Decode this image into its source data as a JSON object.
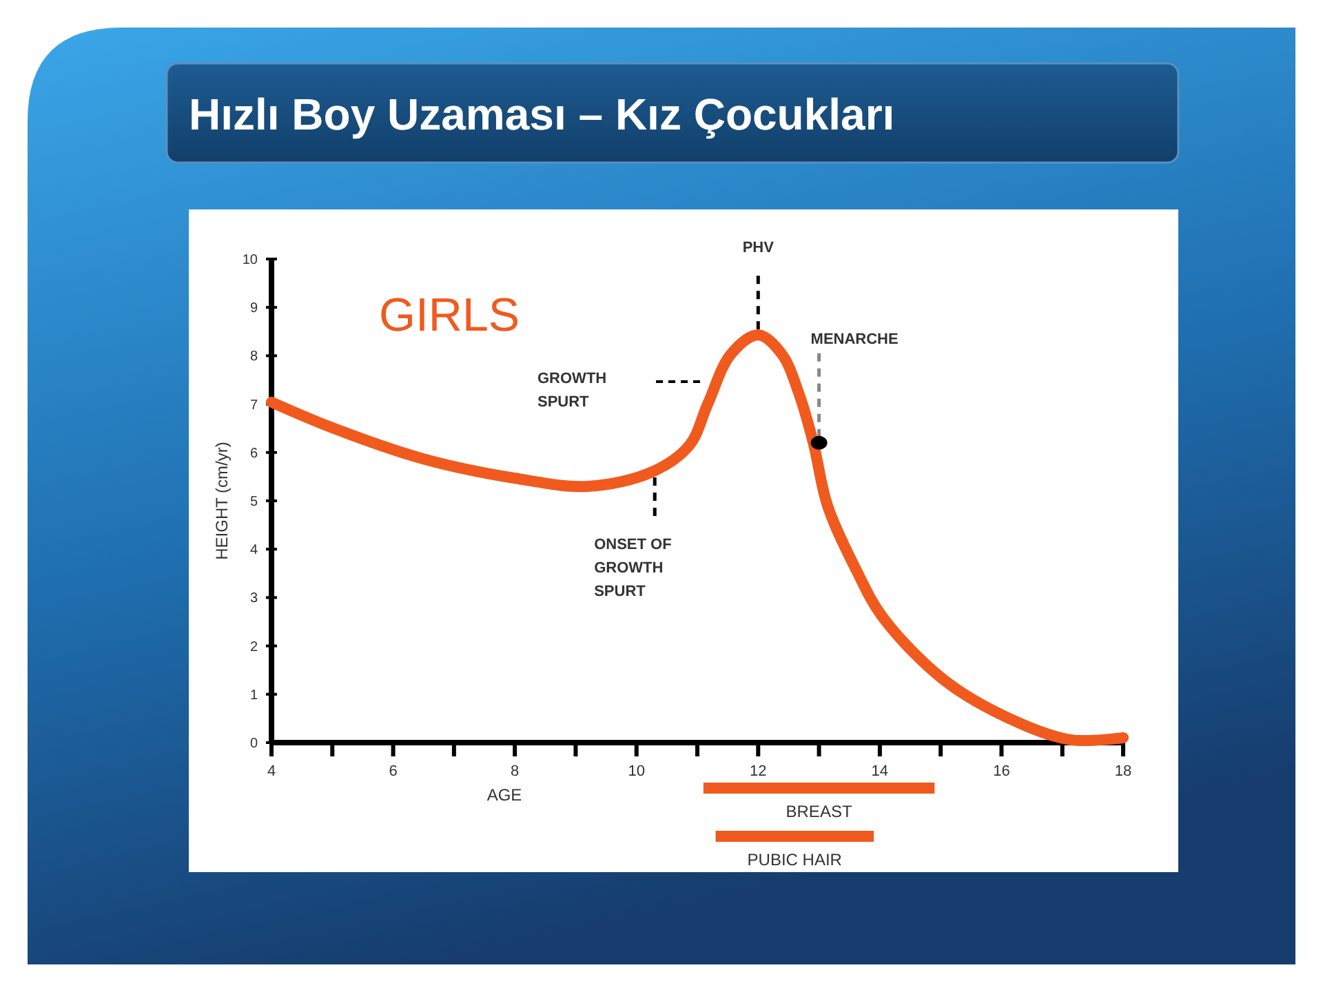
{
  "chart_data": [
    {
      "type": "line",
      "title": "Hızlı Boy Uzaması – Kız Çocukları",
      "xlabel": "AGE",
      "ylabel": "HEIGHT (cm/yr)",
      "xlim": [
        4,
        18
      ],
      "xticks": [
        4,
        {
          "value": 5,
          "label": null
        },
        6,
        {
          "value": 7,
          "label": null
        },
        8,
        {
          "value": 9,
          "label": null
        },
        10,
        {
          "value": 11,
          "label": null
        },
        12,
        {
          "value": 13,
          "label": null
        },
        14,
        {
          "value": 15,
          "label": null
        },
        16,
        {
          "value": 17,
          "label": null
        },
        18
      ],
      "ylim": [
        0,
        10
      ],
      "yticks": [
        0,
        1,
        2,
        3,
        4,
        5,
        6,
        7,
        8,
        9,
        10
      ],
      "grid": false,
      "legend": false,
      "marker": "none",
      "line_style": "solid",
      "series": [
        {
          "color": "#f05a1e",
          "x": [
            4,
            4.98,
            6.49,
            7.99,
            9.2,
            10.26,
            10.87,
            11.17,
            11.55,
            12.0,
            12.39,
            12.68,
            12.91,
            13.14,
            13.6,
            14.05,
            15.07,
            16.11,
            17.13,
            18
          ],
          "values": [
            7.04,
            6.52,
            5.87,
            5.47,
            5.3,
            5.6,
            6.15,
            7.0,
            8.03,
            8.43,
            8.03,
            7.18,
            6.18,
            4.9,
            3.6,
            2.59,
            1.28,
            0.51,
            0.06,
            0.1
          ]
        },
        {
          "type": "scatter",
          "color": "#000000",
          "marker": "circle",
          "x": [
            13.0
          ],
          "values": [
            6.2
          ]
        }
      ],
      "annotations": [
        "GIRLS",
        {
          "text": "PHV",
          "x": 12.0,
          "y": 8.43
        },
        "GROWTH\nSPURT",
        {
          "text": "MENARCHE",
          "x": 13.0,
          "y": 6.2
        },
        {
          "text": "ONSET OF\nGROWTH\nSPURT",
          "x": 10.3,
          "y": 5.6
        }
      ]
    },
    {
      "type": "bar",
      "orientation": "horizontal",
      "categories": [
        "BREAST",
        "PUBIC HAIR"
      ],
      "base": [
        11.1,
        11.3
      ],
      "values": [
        3.8,
        2.6
      ],
      "color": "#f05a1e",
      "xlim": [
        4,
        18
      ],
      "tick_labels": "y"
    }
  ]
}
